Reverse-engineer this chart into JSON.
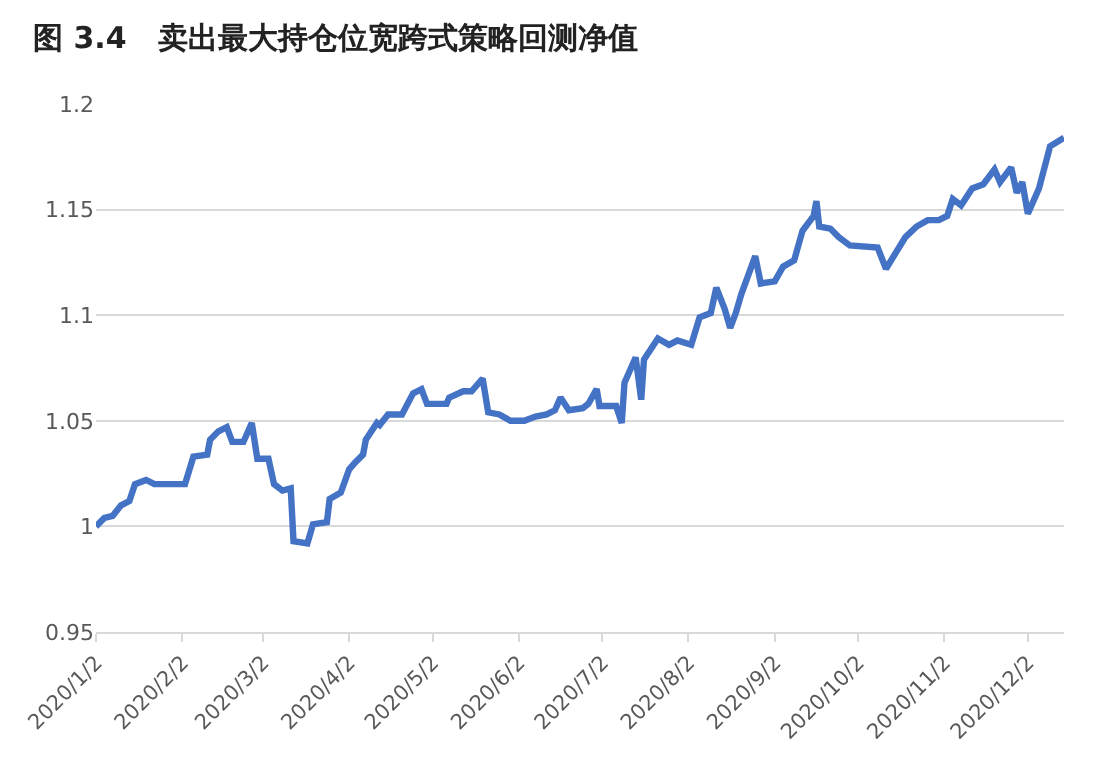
{
  "chart_data": {
    "type": "line",
    "title": "图 3.4   卖出最大持仓位宽跨式策略回测净值",
    "x": [
      "2020-01-02",
      "2020-01-05",
      "2020-01-08",
      "2020-01-11",
      "2020-01-14",
      "2020-01-16",
      "2020-01-20",
      "2020-01-23",
      "2020-02-03",
      "2020-02-06",
      "2020-02-11",
      "2020-02-12",
      "2020-02-15",
      "2020-02-18",
      "2020-02-20",
      "2020-02-24",
      "2020-02-27",
      "2020-02-29",
      "2020-03-04",
      "2020-03-06",
      "2020-03-09",
      "2020-03-12",
      "2020-03-13",
      "2020-03-18",
      "2020-03-20",
      "2020-03-25",
      "2020-03-26",
      "2020-03-30",
      "2020-04-02",
      "2020-04-04",
      "2020-04-07",
      "2020-04-08",
      "2020-04-12",
      "2020-04-13",
      "2020-04-16",
      "2020-04-21",
      "2020-04-25",
      "2020-04-28",
      "2020-04-30",
      "2020-05-07",
      "2020-05-08",
      "2020-05-13",
      "2020-05-16",
      "2020-05-20",
      "2020-05-22",
      "2020-05-26",
      "2020-05-30",
      "2020-06-04",
      "2020-06-08",
      "2020-06-12",
      "2020-06-15",
      "2020-06-17",
      "2020-06-20",
      "2020-06-25",
      "2020-06-27",
      "2020-06-30",
      "2020-07-01",
      "2020-07-07",
      "2020-07-09",
      "2020-07-10",
      "2020-07-14",
      "2020-07-16",
      "2020-07-17",
      "2020-07-22",
      "2020-07-26",
      "2020-07-29",
      "2020-08-03",
      "2020-08-06",
      "2020-08-10",
      "2020-08-12",
      "2020-08-15",
      "2020-08-17",
      "2020-08-19",
      "2020-08-21",
      "2020-08-26",
      "2020-08-28",
      "2020-09-02",
      "2020-09-05",
      "2020-09-09",
      "2020-09-12",
      "2020-09-16",
      "2020-09-17",
      "2020-09-18",
      "2020-09-22",
      "2020-09-25",
      "2020-09-29",
      "2020-10-09",
      "2020-10-12",
      "2020-10-19",
      "2020-10-23",
      "2020-10-27",
      "2020-10-31",
      "2020-11-03",
      "2020-11-05",
      "2020-11-08",
      "2020-11-12",
      "2020-11-16",
      "2020-11-20",
      "2020-11-22",
      "2020-11-26",
      "2020-11-28",
      "2020-11-30",
      "2020-12-02",
      "2020-12-06",
      "2020-12-10",
      "2020-12-15"
    ],
    "series": [
      {
        "color": "#4472c4",
        "values": [
          1.0,
          1.004,
          1.005,
          1.01,
          1.012,
          1.02,
          1.022,
          1.02,
          1.02,
          1.033,
          1.034,
          1.041,
          1.045,
          1.047,
          1.04,
          1.04,
          1.049,
          1.032,
          1.032,
          1.02,
          1.017,
          1.018,
          0.993,
          0.992,
          1.001,
          1.002,
          1.013,
          1.016,
          1.027,
          1.03,
          1.034,
          1.041,
          1.049,
          1.048,
          1.053,
          1.053,
          1.063,
          1.065,
          1.058,
          1.058,
          1.061,
          1.064,
          1.064,
          1.07,
          1.054,
          1.053,
          1.05,
          1.05,
          1.052,
          1.053,
          1.055,
          1.061,
          1.055,
          1.056,
          1.058,
          1.065,
          1.057,
          1.057,
          1.049,
          1.068,
          1.08,
          1.06,
          1.079,
          1.089,
          1.086,
          1.088,
          1.086,
          1.099,
          1.101,
          1.113,
          1.103,
          1.094,
          1.101,
          1.11,
          1.128,
          1.115,
          1.116,
          1.123,
          1.126,
          1.14,
          1.147,
          1.154,
          1.142,
          1.141,
          1.137,
          1.133,
          1.132,
          1.122,
          1.137,
          1.142,
          1.145,
          1.145,
          1.147,
          1.155,
          1.152,
          1.16,
          1.162,
          1.169,
          1.163,
          1.17,
          1.158,
          1.163,
          1.148,
          1.16,
          1.18,
          1.184
        ]
      }
    ],
    "xlim": [
      "2020-01-02",
      "2020-12-15"
    ],
    "xticks": [
      {
        "value": "2020-01-02",
        "label": "2020/1/2"
      },
      {
        "value": "2020-02-02",
        "label": "2020/2/2"
      },
      {
        "value": "2020-03-02",
        "label": "2020/3/2"
      },
      {
        "value": "2020-04-02",
        "label": "2020/4/2"
      },
      {
        "value": "2020-05-02",
        "label": "2020/5/2"
      },
      {
        "value": "2020-06-02",
        "label": "2020/6/2"
      },
      {
        "value": "2020-07-02",
        "label": "2020/7/2"
      },
      {
        "value": "2020-08-02",
        "label": "2020/8/2"
      },
      {
        "value": "2020-09-02",
        "label": "2020/9/2"
      },
      {
        "value": "2020-10-02",
        "label": "2020/10/2"
      },
      {
        "value": "2020-11-02",
        "label": "2020/11/2"
      },
      {
        "value": "2020-12-02",
        "label": "2020/12/2"
      }
    ],
    "ylim": [
      0.95,
      1.2
    ],
    "yticks": [
      0.95,
      1,
      1.05,
      1.1,
      1.15,
      1.2
    ],
    "grid": "y",
    "marker": "none",
    "line_style": "solid"
  }
}
